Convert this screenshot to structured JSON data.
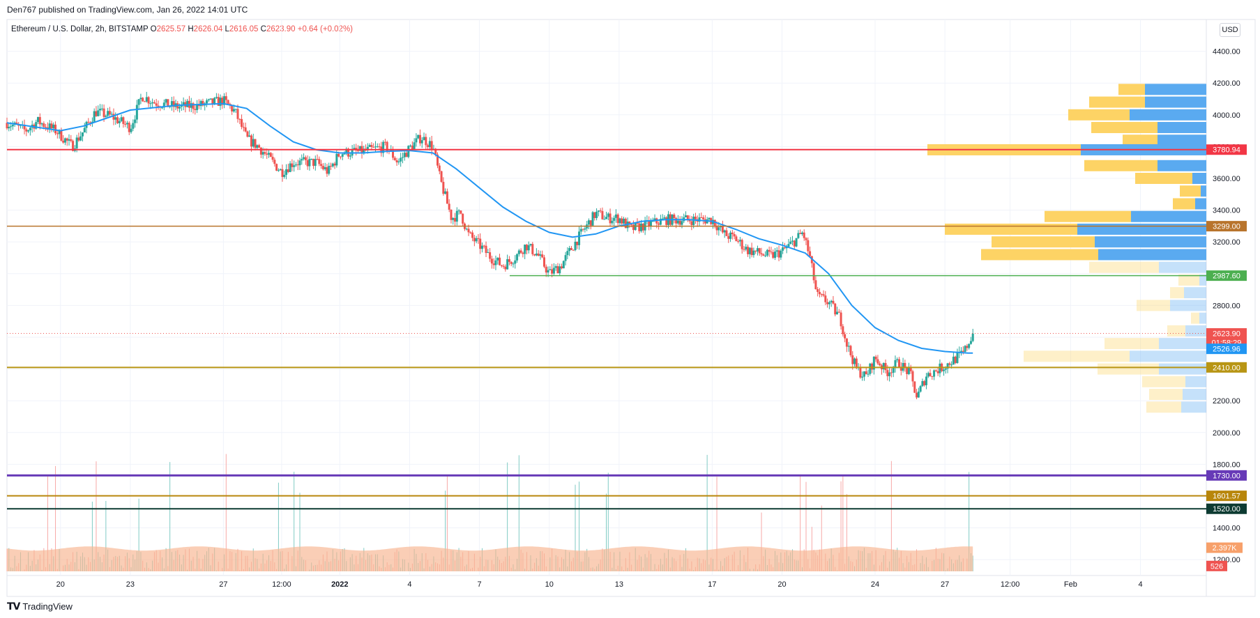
{
  "header": {
    "published": "Den767 published on TradingView.com, Jan 26, 2022 14:01 UTC"
  },
  "legend": {
    "symbol": "Ethereum / U.S. Dollar, 2h, BITSTAMP",
    "o_label": "O",
    "o": "2625.57",
    "h_label": "H",
    "h": "2626.04",
    "l_label": "L",
    "l": "2616.05",
    "c_label": "C",
    "c": "2623.90",
    "change": "+0.64 (+0.02%)"
  },
  "currency_button": "USD",
  "footer": {
    "brand": "TradingView"
  },
  "colors": {
    "up": "#26a69a",
    "down": "#ef5350",
    "ma": "#2196f3",
    "vp_up": "#fdd365",
    "vp_down": "#5aaaf0",
    "volume_area": "#f7b48f"
  },
  "chart_data": {
    "type": "candlestick",
    "ylim": [
      1100,
      4600
    ],
    "y_ticks": [
      1200,
      1400,
      1600,
      1800,
      2000,
      2200,
      2400,
      2600,
      2800,
      3000,
      3200,
      3400,
      3600,
      3800,
      4000,
      4200,
      4400
    ],
    "y_tick_labels": [
      "1200.00",
      "1400.00",
      "1600.00",
      "1800.00",
      "2000.00",
      "2200.00",
      "2400.00",
      "2600.00",
      "2800.00",
      "3000.00",
      "3200.00",
      "3400.00",
      "3600.00",
      "3800.00",
      "4000.00",
      "4200.00",
      "4400.00"
    ],
    "x_labels": [
      {
        "label": "20",
        "day": 2.0
      },
      {
        "label": "23",
        "day": 5.0
      },
      {
        "label": "27",
        "day": 9.0
      },
      {
        "label": "12:00",
        "day": 11.5
      },
      {
        "label": "2022",
        "day": 14.0
      },
      {
        "label": "4",
        "day": 17.0
      },
      {
        "label": "7",
        "day": 20.0
      },
      {
        "label": "10",
        "day": 23.0
      },
      {
        "label": "13",
        "day": 26.0
      },
      {
        "label": "17",
        "day": 30.0
      },
      {
        "label": "20",
        "day": 33.0
      },
      {
        "label": "24",
        "day": 37.0
      },
      {
        "label": "27",
        "day": 40.0
      },
      {
        "label": "12:00",
        "day": 42.8
      },
      {
        "label": "Feb",
        "day": 45.4
      },
      {
        "label": "4",
        "day": 48.4
      }
    ],
    "x_range_days": [
      -0.3,
      51.2
    ],
    "price_path": [
      [
        -0.3,
        3950
      ],
      [
        0.5,
        3900
      ],
      [
        1,
        3960
      ],
      [
        1.8,
        3900
      ],
      [
        2.5,
        3800
      ],
      [
        3,
        3900
      ],
      [
        3.5,
        4020
      ],
      [
        4.2,
        3990
      ],
      [
        5,
        3920
      ],
      [
        5.5,
        4120
      ],
      [
        6,
        4080
      ],
      [
        7,
        4050
      ],
      [
        8,
        4060
      ],
      [
        9,
        4090
      ],
      [
        9.5,
        4020
      ],
      [
        10,
        3850
      ],
      [
        10.5,
        3800
      ],
      [
        11,
        3720
      ],
      [
        11.5,
        3640
      ],
      [
        12,
        3700
      ],
      [
        13,
        3700
      ],
      [
        13.5,
        3640
      ],
      [
        14,
        3760
      ],
      [
        15,
        3770
      ],
      [
        16,
        3800
      ],
      [
        16.5,
        3700
      ],
      [
        17,
        3790
      ],
      [
        17.5,
        3860
      ],
      [
        18,
        3800
      ],
      [
        18.3,
        3600
      ],
      [
        18.8,
        3350
      ],
      [
        19.2,
        3380
      ],
      [
        19.5,
        3250
      ],
      [
        20,
        3180
      ],
      [
        20.5,
        3100
      ],
      [
        21,
        3050
      ],
      [
        21.5,
        3100
      ],
      [
        22,
        3180
      ],
      [
        22.5,
        3120
      ],
      [
        23,
        3000
      ],
      [
        23.5,
        3050
      ],
      [
        24,
        3170
      ],
      [
        24.5,
        3280
      ],
      [
        25,
        3380
      ],
      [
        25.5,
        3350
      ],
      [
        26,
        3350
      ],
      [
        26.5,
        3280
      ],
      [
        27,
        3300
      ],
      [
        27.5,
        3320
      ],
      [
        28,
        3340
      ],
      [
        29,
        3340
      ],
      [
        30,
        3340
      ],
      [
        30.5,
        3250
      ],
      [
        31,
        3220
      ],
      [
        31.5,
        3150
      ],
      [
        32,
        3130
      ],
      [
        32.5,
        3110
      ],
      [
        33,
        3140
      ],
      [
        33.5,
        3200
      ],
      [
        33.9,
        3260
      ],
      [
        34.2,
        3100
      ],
      [
        34.5,
        2860
      ],
      [
        35,
        2820
      ],
      [
        35.5,
        2720
      ],
      [
        35.8,
        2550
      ],
      [
        36.2,
        2400
      ],
      [
        36.6,
        2350
      ],
      [
        37,
        2470
      ],
      [
        37.5,
        2380
      ],
      [
        38,
        2440
      ],
      [
        38.5,
        2370
      ],
      [
        38.8,
        2220
      ],
      [
        39.2,
        2360
      ],
      [
        39.6,
        2390
      ],
      [
        40,
        2420
      ],
      [
        40.4,
        2460
      ],
      [
        40.8,
        2500
      ],
      [
        41.2,
        2624
      ]
    ],
    "ma_path": [
      [
        -0.3,
        3950
      ],
      [
        2,
        3900
      ],
      [
        3,
        3930
      ],
      [
        5,
        4030
      ],
      [
        7,
        4060
      ],
      [
        9,
        4070
      ],
      [
        10,
        4040
      ],
      [
        11,
        3930
      ],
      [
        12,
        3830
      ],
      [
        13,
        3780
      ],
      [
        14,
        3760
      ],
      [
        15,
        3760
      ],
      [
        16,
        3770
      ],
      [
        17,
        3775
      ],
      [
        18,
        3760
      ],
      [
        19,
        3660
      ],
      [
        20,
        3540
      ],
      [
        21,
        3420
      ],
      [
        22,
        3330
      ],
      [
        23,
        3260
      ],
      [
        24,
        3230
      ],
      [
        25,
        3250
      ],
      [
        26,
        3300
      ],
      [
        27,
        3330
      ],
      [
        28,
        3340
      ],
      [
        29,
        3340
      ],
      [
        30,
        3330
      ],
      [
        31,
        3280
      ],
      [
        32,
        3220
      ],
      [
        33,
        3180
      ],
      [
        34,
        3130
      ],
      [
        35,
        3000
      ],
      [
        36,
        2800
      ],
      [
        37,
        2660
      ],
      [
        38,
        2580
      ],
      [
        39,
        2530
      ],
      [
        40,
        2510
      ],
      [
        41,
        2500
      ],
      [
        41.2,
        2500
      ]
    ],
    "horizontal_levels": [
      {
        "price": 3780.94,
        "label": "3780.94",
        "color": "#f23645",
        "from_day": -0.3,
        "width": 2
      },
      {
        "price": 3299.0,
        "label": "3299.00",
        "color": "#b8742c",
        "from_day": -0.3,
        "width": 1.5
      },
      {
        "price": 2987.6,
        "label": "2987.60",
        "color": "#4caf50",
        "from_day": 21.3,
        "width": 1.5
      },
      {
        "price": 2410.0,
        "label": "2410.00",
        "color": "#b89514",
        "from_day": -0.3,
        "width": 2
      },
      {
        "price": 1730.0,
        "label": "1730.00",
        "color": "#673ab7",
        "from_day": -0.3,
        "width": 3
      },
      {
        "price": 1601.57,
        "label": "1601.57",
        "color": "#b8860b",
        "from_day": -0.3,
        "width": 2
      },
      {
        "price": 1520.0,
        "label": "1520.00",
        "color": "#0d3b32",
        "from_day": -0.3,
        "width": 2
      }
    ],
    "last_price": {
      "label": "2623.90",
      "countdown": "01:58:29",
      "price": 2623.9,
      "color": "#ef5350"
    },
    "ma_value": {
      "label": "2526.96",
      "price": 2526.96,
      "color": "#2196f3"
    },
    "volume": {
      "label": "2.397K",
      "label_color": "#f7a06a",
      "count_label": "526",
      "count_color": "#ef5350",
      "area_level": 1270
    },
    "volume_profile": [
      {
        "price": 4160,
        "up": 38,
        "down": 88,
        "faded": false
      },
      {
        "price": 4080,
        "up": 80,
        "down": 88,
        "faded": false
      },
      {
        "price": 4000,
        "up": 88,
        "down": 110,
        "faded": false
      },
      {
        "price": 3920,
        "up": 95,
        "down": 70,
        "faded": false
      },
      {
        "price": 3840,
        "up": 50,
        "down": 70,
        "faded": false
      },
      {
        "price": 3780,
        "up": 220,
        "down": 180,
        "faded": false
      },
      {
        "price": 3680,
        "up": 105,
        "down": 70,
        "faded": false
      },
      {
        "price": 3600,
        "up": 82,
        "down": 20,
        "faded": false
      },
      {
        "price": 3520,
        "up": 30,
        "down": 8,
        "faded": false
      },
      {
        "price": 3440,
        "up": 32,
        "down": 16,
        "faded": false
      },
      {
        "price": 3360,
        "up": 124,
        "down": 108,
        "faded": false
      },
      {
        "price": 3280,
        "up": 190,
        "down": 185,
        "faded": false
      },
      {
        "price": 3200,
        "up": 148,
        "down": 160,
        "faded": false
      },
      {
        "price": 3120,
        "up": 168,
        "down": 155,
        "faded": false
      },
      {
        "price": 3040,
        "up": 100,
        "down": 68,
        "faded": true
      },
      {
        "price": 2960,
        "up": 30,
        "down": 10,
        "faded": true
      },
      {
        "price": 2880,
        "up": 20,
        "down": 32,
        "faded": true
      },
      {
        "price": 2800,
        "up": 48,
        "down": 52,
        "faded": true
      },
      {
        "price": 2720,
        "up": 12,
        "down": 10,
        "faded": true
      },
      {
        "price": 2640,
        "up": 26,
        "down": 30,
        "faded": true
      },
      {
        "price": 2560,
        "up": 78,
        "down": 68,
        "faded": true
      },
      {
        "price": 2480,
        "up": 152,
        "down": 110,
        "faded": true
      },
      {
        "price": 2400,
        "up": 88,
        "down": 68,
        "faded": true
      },
      {
        "price": 2320,
        "up": 62,
        "down": 30,
        "faded": true
      },
      {
        "price": 2240,
        "up": 48,
        "down": 34,
        "faded": true
      },
      {
        "price": 2160,
        "up": 50,
        "down": 36,
        "faded": true
      }
    ]
  }
}
